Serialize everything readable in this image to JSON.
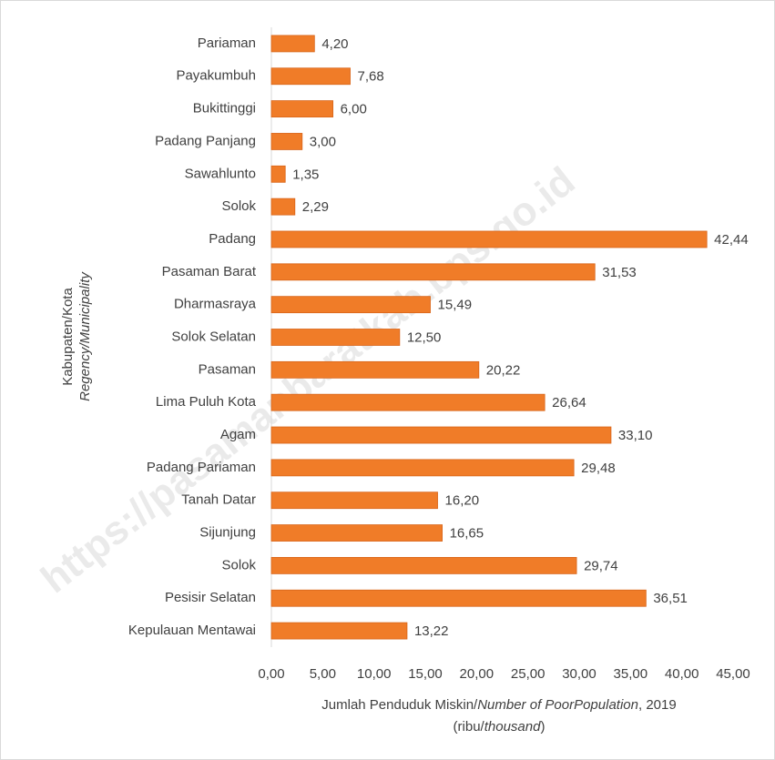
{
  "chart_data": {
    "type": "bar",
    "orientation": "horizontal",
    "categories": [
      "Pariaman",
      "Payakumbuh",
      "Bukittinggi",
      "Padang Panjang",
      "Sawahlunto",
      "Solok",
      "Padang",
      "Pasaman Barat",
      "Dharmasraya",
      "Solok Selatan",
      "Pasaman",
      "Lima Puluh Kota",
      "Agam",
      "Padang Pariaman",
      "Tanah Datar",
      "Sijunjung",
      "Solok",
      "Pesisir Selatan",
      "Kepulauan Mentawai"
    ],
    "values": [
      4.2,
      7.68,
      6.0,
      3.0,
      1.35,
      2.29,
      42.44,
      31.53,
      15.49,
      12.5,
      20.22,
      26.64,
      33.1,
      29.48,
      16.2,
      16.65,
      29.74,
      36.51,
      13.22
    ],
    "value_labels": [
      "4,20",
      "7,68",
      "6,00",
      "3,00",
      "1,35",
      "2,29",
      "42,44",
      "31,53",
      "15,49",
      "12,50",
      "20,22",
      "26,64",
      "33,10",
      "29,48",
      "16,20",
      "16,65",
      "29,74",
      "36,51",
      "13,22"
    ],
    "color": "#f07c28",
    "xlim": [
      0,
      45
    ],
    "xticks": [
      {
        "value": 0,
        "label": "0,00"
      },
      {
        "value": 5,
        "label": "5,00"
      },
      {
        "value": 10,
        "label": "10,00"
      },
      {
        "value": 15,
        "label": "15,00"
      },
      {
        "value": 20,
        "label": "20,00"
      },
      {
        "value": 25,
        "label": "25,00"
      },
      {
        "value": 30,
        "label": "30,00"
      },
      {
        "value": 35,
        "label": "35,00"
      },
      {
        "value": 40,
        "label": "40,00"
      },
      {
        "value": 45,
        "label": "45,00"
      }
    ],
    "xlabel": {
      "line1": [
        "Jumlah Penduduk Miskin/",
        "Number of PoorPopulation",
        ", 2019"
      ],
      "line2": [
        "(ribu/",
        "thousand",
        ")"
      ]
    },
    "ylabel": {
      "line1": "Kabupaten/Kota",
      "line2": "Regency/Municipality"
    },
    "watermark": "https://pasamanbaratkab.bps.go.id"
  }
}
